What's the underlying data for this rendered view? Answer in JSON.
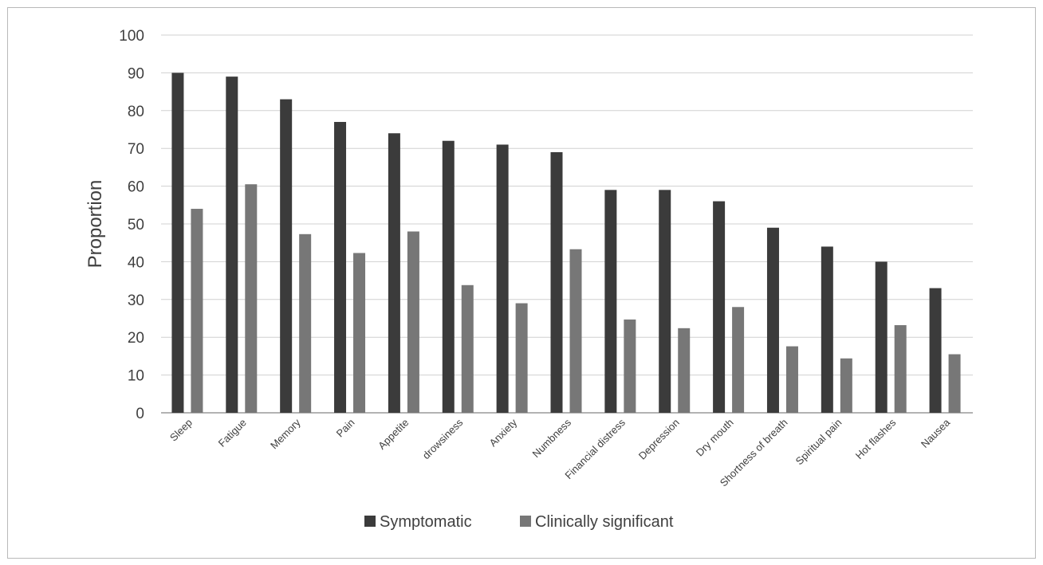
{
  "chart_data": {
    "type": "bar",
    "title": "",
    "xlabel": "",
    "ylabel": "Proportion",
    "ylim": [
      0,
      100
    ],
    "yticks": [
      0,
      10,
      20,
      30,
      40,
      50,
      60,
      70,
      80,
      90,
      100
    ],
    "grid": true,
    "legend_position": "bottom",
    "categories": [
      "Sleep",
      "Fatigue",
      "Memory",
      "Pain",
      "Appetite",
      "drowsiness",
      "Anxiety",
      "Numbness",
      "Financial distress",
      "Depression",
      "Dry mouth",
      "Shortness of breath",
      "Spiritual pain",
      "Hot flashes",
      "Nausea"
    ],
    "series": [
      {
        "name": "Symptomatic",
        "color": "#3b3b3b",
        "values": [
          90,
          89,
          83,
          77,
          74,
          72,
          71,
          69,
          59,
          59,
          56,
          49,
          44,
          40,
          33
        ]
      },
      {
        "name": "Clinically significant",
        "color": "#777777",
        "values": [
          54,
          60.5,
          47.3,
          42.3,
          48,
          33.8,
          29,
          43.3,
          24.7,
          22.4,
          28,
          17.6,
          14.4,
          23.2,
          15.5
        ]
      }
    ]
  }
}
